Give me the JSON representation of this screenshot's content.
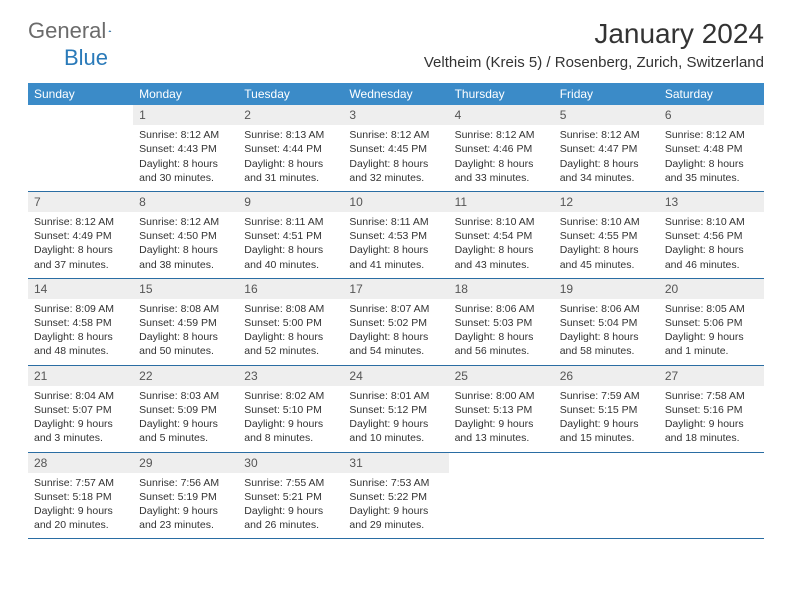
{
  "logo": {
    "text_general": "General",
    "text_blue": "Blue"
  },
  "title": "January 2024",
  "location": "Veltheim (Kreis 5) / Rosenberg, Zurich, Switzerland",
  "weekdays": [
    "Sunday",
    "Monday",
    "Tuesday",
    "Wednesday",
    "Thursday",
    "Friday",
    "Saturday"
  ],
  "colors": {
    "header_bg": "#3b8bc8",
    "header_text": "#ffffff",
    "day_num_bg": "#eeeeee",
    "row_border": "#2a6da3",
    "body_text": "#333333"
  },
  "weeks": [
    [
      {
        "num": "",
        "sunrise": "",
        "sunset": "",
        "daylight1": "",
        "daylight2": ""
      },
      {
        "num": "1",
        "sunrise": "Sunrise: 8:12 AM",
        "sunset": "Sunset: 4:43 PM",
        "daylight1": "Daylight: 8 hours",
        "daylight2": "and 30 minutes."
      },
      {
        "num": "2",
        "sunrise": "Sunrise: 8:13 AM",
        "sunset": "Sunset: 4:44 PM",
        "daylight1": "Daylight: 8 hours",
        "daylight2": "and 31 minutes."
      },
      {
        "num": "3",
        "sunrise": "Sunrise: 8:12 AM",
        "sunset": "Sunset: 4:45 PM",
        "daylight1": "Daylight: 8 hours",
        "daylight2": "and 32 minutes."
      },
      {
        "num": "4",
        "sunrise": "Sunrise: 8:12 AM",
        "sunset": "Sunset: 4:46 PM",
        "daylight1": "Daylight: 8 hours",
        "daylight2": "and 33 minutes."
      },
      {
        "num": "5",
        "sunrise": "Sunrise: 8:12 AM",
        "sunset": "Sunset: 4:47 PM",
        "daylight1": "Daylight: 8 hours",
        "daylight2": "and 34 minutes."
      },
      {
        "num": "6",
        "sunrise": "Sunrise: 8:12 AM",
        "sunset": "Sunset: 4:48 PM",
        "daylight1": "Daylight: 8 hours",
        "daylight2": "and 35 minutes."
      }
    ],
    [
      {
        "num": "7",
        "sunrise": "Sunrise: 8:12 AM",
        "sunset": "Sunset: 4:49 PM",
        "daylight1": "Daylight: 8 hours",
        "daylight2": "and 37 minutes."
      },
      {
        "num": "8",
        "sunrise": "Sunrise: 8:12 AM",
        "sunset": "Sunset: 4:50 PM",
        "daylight1": "Daylight: 8 hours",
        "daylight2": "and 38 minutes."
      },
      {
        "num": "9",
        "sunrise": "Sunrise: 8:11 AM",
        "sunset": "Sunset: 4:51 PM",
        "daylight1": "Daylight: 8 hours",
        "daylight2": "and 40 minutes."
      },
      {
        "num": "10",
        "sunrise": "Sunrise: 8:11 AM",
        "sunset": "Sunset: 4:53 PM",
        "daylight1": "Daylight: 8 hours",
        "daylight2": "and 41 minutes."
      },
      {
        "num": "11",
        "sunrise": "Sunrise: 8:10 AM",
        "sunset": "Sunset: 4:54 PM",
        "daylight1": "Daylight: 8 hours",
        "daylight2": "and 43 minutes."
      },
      {
        "num": "12",
        "sunrise": "Sunrise: 8:10 AM",
        "sunset": "Sunset: 4:55 PM",
        "daylight1": "Daylight: 8 hours",
        "daylight2": "and 45 minutes."
      },
      {
        "num": "13",
        "sunrise": "Sunrise: 8:10 AM",
        "sunset": "Sunset: 4:56 PM",
        "daylight1": "Daylight: 8 hours",
        "daylight2": "and 46 minutes."
      }
    ],
    [
      {
        "num": "14",
        "sunrise": "Sunrise: 8:09 AM",
        "sunset": "Sunset: 4:58 PM",
        "daylight1": "Daylight: 8 hours",
        "daylight2": "and 48 minutes."
      },
      {
        "num": "15",
        "sunrise": "Sunrise: 8:08 AM",
        "sunset": "Sunset: 4:59 PM",
        "daylight1": "Daylight: 8 hours",
        "daylight2": "and 50 minutes."
      },
      {
        "num": "16",
        "sunrise": "Sunrise: 8:08 AM",
        "sunset": "Sunset: 5:00 PM",
        "daylight1": "Daylight: 8 hours",
        "daylight2": "and 52 minutes."
      },
      {
        "num": "17",
        "sunrise": "Sunrise: 8:07 AM",
        "sunset": "Sunset: 5:02 PM",
        "daylight1": "Daylight: 8 hours",
        "daylight2": "and 54 minutes."
      },
      {
        "num": "18",
        "sunrise": "Sunrise: 8:06 AM",
        "sunset": "Sunset: 5:03 PM",
        "daylight1": "Daylight: 8 hours",
        "daylight2": "and 56 minutes."
      },
      {
        "num": "19",
        "sunrise": "Sunrise: 8:06 AM",
        "sunset": "Sunset: 5:04 PM",
        "daylight1": "Daylight: 8 hours",
        "daylight2": "and 58 minutes."
      },
      {
        "num": "20",
        "sunrise": "Sunrise: 8:05 AM",
        "sunset": "Sunset: 5:06 PM",
        "daylight1": "Daylight: 9 hours",
        "daylight2": "and 1 minute."
      }
    ],
    [
      {
        "num": "21",
        "sunrise": "Sunrise: 8:04 AM",
        "sunset": "Sunset: 5:07 PM",
        "daylight1": "Daylight: 9 hours",
        "daylight2": "and 3 minutes."
      },
      {
        "num": "22",
        "sunrise": "Sunrise: 8:03 AM",
        "sunset": "Sunset: 5:09 PM",
        "daylight1": "Daylight: 9 hours",
        "daylight2": "and 5 minutes."
      },
      {
        "num": "23",
        "sunrise": "Sunrise: 8:02 AM",
        "sunset": "Sunset: 5:10 PM",
        "daylight1": "Daylight: 9 hours",
        "daylight2": "and 8 minutes."
      },
      {
        "num": "24",
        "sunrise": "Sunrise: 8:01 AM",
        "sunset": "Sunset: 5:12 PM",
        "daylight1": "Daylight: 9 hours",
        "daylight2": "and 10 minutes."
      },
      {
        "num": "25",
        "sunrise": "Sunrise: 8:00 AM",
        "sunset": "Sunset: 5:13 PM",
        "daylight1": "Daylight: 9 hours",
        "daylight2": "and 13 minutes."
      },
      {
        "num": "26",
        "sunrise": "Sunrise: 7:59 AM",
        "sunset": "Sunset: 5:15 PM",
        "daylight1": "Daylight: 9 hours",
        "daylight2": "and 15 minutes."
      },
      {
        "num": "27",
        "sunrise": "Sunrise: 7:58 AM",
        "sunset": "Sunset: 5:16 PM",
        "daylight1": "Daylight: 9 hours",
        "daylight2": "and 18 minutes."
      }
    ],
    [
      {
        "num": "28",
        "sunrise": "Sunrise: 7:57 AM",
        "sunset": "Sunset: 5:18 PM",
        "daylight1": "Daylight: 9 hours",
        "daylight2": "and 20 minutes."
      },
      {
        "num": "29",
        "sunrise": "Sunrise: 7:56 AM",
        "sunset": "Sunset: 5:19 PM",
        "daylight1": "Daylight: 9 hours",
        "daylight2": "and 23 minutes."
      },
      {
        "num": "30",
        "sunrise": "Sunrise: 7:55 AM",
        "sunset": "Sunset: 5:21 PM",
        "daylight1": "Daylight: 9 hours",
        "daylight2": "and 26 minutes."
      },
      {
        "num": "31",
        "sunrise": "Sunrise: 7:53 AM",
        "sunset": "Sunset: 5:22 PM",
        "daylight1": "Daylight: 9 hours",
        "daylight2": "and 29 minutes."
      },
      {
        "num": "",
        "sunrise": "",
        "sunset": "",
        "daylight1": "",
        "daylight2": ""
      },
      {
        "num": "",
        "sunrise": "",
        "sunset": "",
        "daylight1": "",
        "daylight2": ""
      },
      {
        "num": "",
        "sunrise": "",
        "sunset": "",
        "daylight1": "",
        "daylight2": ""
      }
    ]
  ]
}
